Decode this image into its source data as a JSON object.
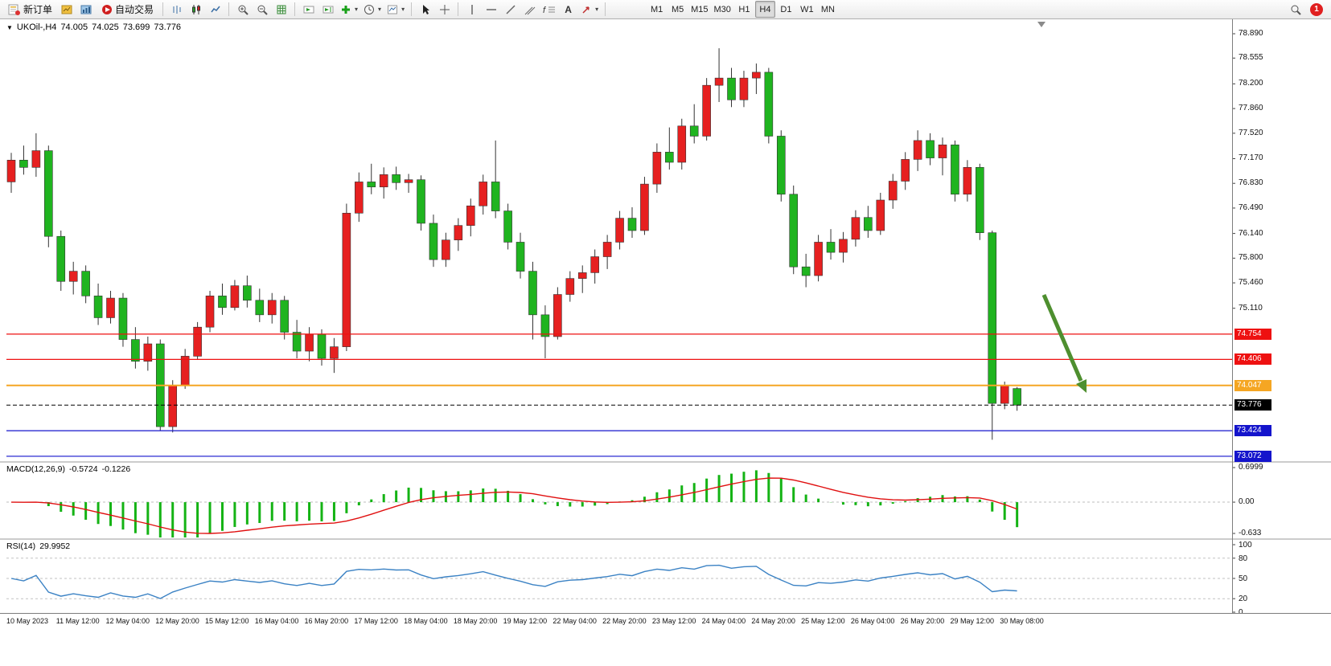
{
  "toolbar": {
    "new_order_label": "新订单",
    "autotrading_label": "自动交易",
    "timeframes": [
      "M1",
      "M5",
      "M15",
      "M30",
      "H1",
      "H4",
      "D1",
      "W1",
      "MN"
    ],
    "active_timeframe": "H4",
    "notification_count": "1"
  },
  "icons": {
    "caret_down": "▾",
    "collapse_triangle": "▼",
    "text_tool_glyph": "A",
    "fibonacci_glyph": "f"
  },
  "chart_data": [
    {
      "type": "candlestick",
      "legend": {
        "symbol_period": "UKOil-,H4",
        "open": "74.005",
        "high": "74.025",
        "low": "73.699",
        "close": "73.776"
      },
      "up_color": "#e62020",
      "down_color": "#1fb41f",
      "wick_color": "#333333",
      "arrow_color": "#4e8f2f",
      "y_range": [
        73.0,
        79.03
      ],
      "y_ticks": [
        "78.890",
        "78.555",
        "78.200",
        "77.860",
        "77.520",
        "77.170",
        "76.830",
        "76.490",
        "76.140",
        "75.800",
        "75.460",
        "75.110"
      ],
      "hlines": [
        {
          "price": 74.754,
          "label": "74.754",
          "color": "#ee1111",
          "w": 1.2
        },
        {
          "price": 74.406,
          "label": "74.406",
          "color": "#ee1111",
          "w": 1.2
        },
        {
          "price": 74.047,
          "label": "74.047",
          "color": "#f5a623",
          "w": 2
        },
        {
          "price": 73.776,
          "label": "73.776",
          "color": "#000000",
          "w": 1,
          "dash": true,
          "role": "bid-price"
        },
        {
          "price": 73.424,
          "label": "73.424",
          "color": "#1414cc",
          "w": 1.2
        },
        {
          "price": 73.072,
          "label": "73.072",
          "color": "#1414cc",
          "w": 1.2
        }
      ],
      "x_label_step": 4,
      "x_labels": [
        "10 May 2023",
        "11 May 12:00",
        "12 May 04:00",
        "12 May 20:00",
        "15 May 12:00",
        "16 May 04:00",
        "16 May 20:00",
        "17 May 12:00",
        "18 May 04:00",
        "18 May 20:00",
        "19 May 12:00",
        "22 May 04:00",
        "22 May 20:00",
        "23 May 12:00",
        "24 May 04:00",
        "24 May 20:00",
        "25 May 12:00",
        "26 May 04:00",
        "26 May 20:00",
        "29 May 12:00",
        "30 May 08:00"
      ],
      "candles": [
        [
          76.85,
          77.25,
          76.7,
          77.15
        ],
        [
          77.15,
          77.35,
          76.95,
          77.05
        ],
        [
          77.05,
          77.52,
          76.92,
          77.28
        ],
        [
          77.28,
          77.35,
          75.95,
          76.1
        ],
        [
          76.1,
          76.18,
          75.35,
          75.48
        ],
        [
          75.48,
          75.75,
          75.3,
          75.62
        ],
        [
          75.62,
          75.7,
          75.18,
          75.28
        ],
        [
          75.28,
          75.45,
          74.88,
          74.98
        ],
        [
          74.98,
          75.35,
          74.9,
          75.25
        ],
        [
          75.25,
          75.32,
          74.58,
          74.68
        ],
        [
          74.68,
          74.85,
          74.28,
          74.38
        ],
        [
          74.38,
          74.72,
          74.25,
          74.62
        ],
        [
          74.62,
          74.68,
          73.42,
          73.48
        ],
        [
          73.48,
          74.12,
          73.4,
          74.05
        ],
        [
          74.05,
          74.55,
          74.0,
          74.45
        ],
        [
          74.45,
          74.92,
          74.4,
          74.85
        ],
        [
          74.85,
          75.35,
          74.78,
          75.28
        ],
        [
          75.28,
          75.45,
          75.02,
          75.12
        ],
        [
          75.12,
          75.5,
          75.08,
          75.42
        ],
        [
          75.42,
          75.56,
          75.12,
          75.22
        ],
        [
          75.22,
          75.38,
          74.92,
          75.02
        ],
        [
          75.02,
          75.32,
          74.9,
          75.22
        ],
        [
          75.22,
          75.28,
          74.68,
          74.78
        ],
        [
          74.78,
          74.95,
          74.42,
          74.52
        ],
        [
          74.52,
          74.85,
          74.38,
          74.75
        ],
        [
          74.75,
          74.82,
          74.32,
          74.42
        ],
        [
          74.42,
          74.7,
          74.22,
          74.58
        ],
        [
          74.58,
          76.55,
          74.52,
          76.42
        ],
        [
          76.42,
          76.98,
          76.3,
          76.85
        ],
        [
          76.85,
          77.1,
          76.68,
          76.78
        ],
        [
          76.78,
          77.05,
          76.62,
          76.95
        ],
        [
          76.95,
          77.06,
          76.74,
          76.84
        ],
        [
          76.84,
          76.96,
          76.7,
          76.88
        ],
        [
          76.88,
          76.94,
          76.18,
          76.28
        ],
        [
          76.28,
          76.4,
          75.68,
          75.78
        ],
        [
          75.78,
          76.15,
          75.68,
          76.05
        ],
        [
          76.05,
          76.35,
          75.9,
          76.25
        ],
        [
          76.25,
          76.62,
          76.1,
          76.52
        ],
        [
          76.52,
          76.95,
          76.4,
          76.85
        ],
        [
          76.85,
          77.42,
          76.35,
          76.45
        ],
        [
          76.45,
          76.55,
          75.92,
          76.02
        ],
        [
          76.02,
          76.15,
          75.52,
          75.62
        ],
        [
          75.62,
          75.75,
          74.68,
          75.02
        ],
        [
          75.02,
          75.15,
          74.42,
          74.72
        ],
        [
          74.72,
          75.4,
          74.68,
          75.3
        ],
        [
          75.3,
          75.62,
          75.2,
          75.52
        ],
        [
          75.52,
          75.7,
          75.32,
          75.6
        ],
        [
          75.6,
          75.92,
          75.45,
          75.82
        ],
        [
          75.82,
          76.12,
          75.65,
          76.02
        ],
        [
          76.02,
          76.45,
          75.92,
          76.35
        ],
        [
          76.35,
          76.5,
          76.08,
          76.18
        ],
        [
          76.18,
          76.92,
          76.12,
          76.82
        ],
        [
          76.82,
          77.38,
          76.7,
          77.26
        ],
        [
          77.26,
          77.6,
          77.02,
          77.12
        ],
        [
          77.12,
          77.72,
          77.02,
          77.62
        ],
        [
          77.62,
          77.92,
          77.38,
          77.48
        ],
        [
          77.48,
          78.28,
          77.42,
          78.18
        ],
        [
          78.18,
          78.69,
          77.95,
          78.28
        ],
        [
          78.28,
          78.42,
          77.88,
          77.98
        ],
        [
          77.98,
          78.38,
          77.88,
          78.28
        ],
        [
          78.28,
          78.48,
          78.06,
          78.36
        ],
        [
          78.36,
          78.42,
          77.38,
          77.48
        ],
        [
          77.48,
          77.56,
          76.58,
          76.68
        ],
        [
          76.68,
          76.8,
          75.58,
          75.68
        ],
        [
          75.68,
          75.86,
          75.4,
          75.56
        ],
        [
          75.56,
          76.12,
          75.48,
          76.02
        ],
        [
          76.02,
          76.2,
          75.78,
          75.88
        ],
        [
          75.88,
          76.16,
          75.74,
          76.06
        ],
        [
          76.06,
          76.46,
          75.96,
          76.36
        ],
        [
          76.36,
          76.52,
          76.08,
          76.18
        ],
        [
          76.18,
          76.7,
          76.12,
          76.6
        ],
        [
          76.6,
          76.96,
          76.48,
          76.86
        ],
        [
          76.86,
          77.26,
          76.74,
          77.16
        ],
        [
          77.16,
          77.56,
          77.0,
          77.42
        ],
        [
          77.42,
          77.52,
          77.08,
          77.18
        ],
        [
          77.18,
          77.46,
          76.94,
          77.36
        ],
        [
          77.36,
          77.42,
          76.58,
          76.68
        ],
        [
          76.68,
          77.15,
          76.58,
          77.05
        ],
        [
          77.05,
          77.1,
          76.05,
          76.15
        ],
        [
          76.15,
          76.18,
          73.3,
          73.8
        ],
        [
          73.8,
          74.1,
          73.72,
          74.05
        ],
        [
          74.005,
          74.025,
          73.699,
          73.776
        ]
      ]
    },
    {
      "type": "macd",
      "label": "MACD(12,26,9)",
      "value_main": "-0.5724",
      "value_signal": "-0.1226",
      "params": [
        12,
        26,
        9
      ],
      "histogram_color": "#14b314",
      "signal_color": "#e01010",
      "y_ticks": [
        "0.6999",
        "0.00",
        "-0.633"
      ],
      "y_tick_values": [
        0.6999,
        0,
        -0.633
      ]
    },
    {
      "type": "rsi",
      "label": "RSI(14)",
      "value": "29.9952",
      "period": 14,
      "line_color": "#3b82c4",
      "levels": [
        80,
        50,
        20
      ],
      "y_ticks": [
        "100",
        "80",
        "50",
        "20",
        "0"
      ],
      "y_range": [
        0,
        100
      ]
    }
  ]
}
